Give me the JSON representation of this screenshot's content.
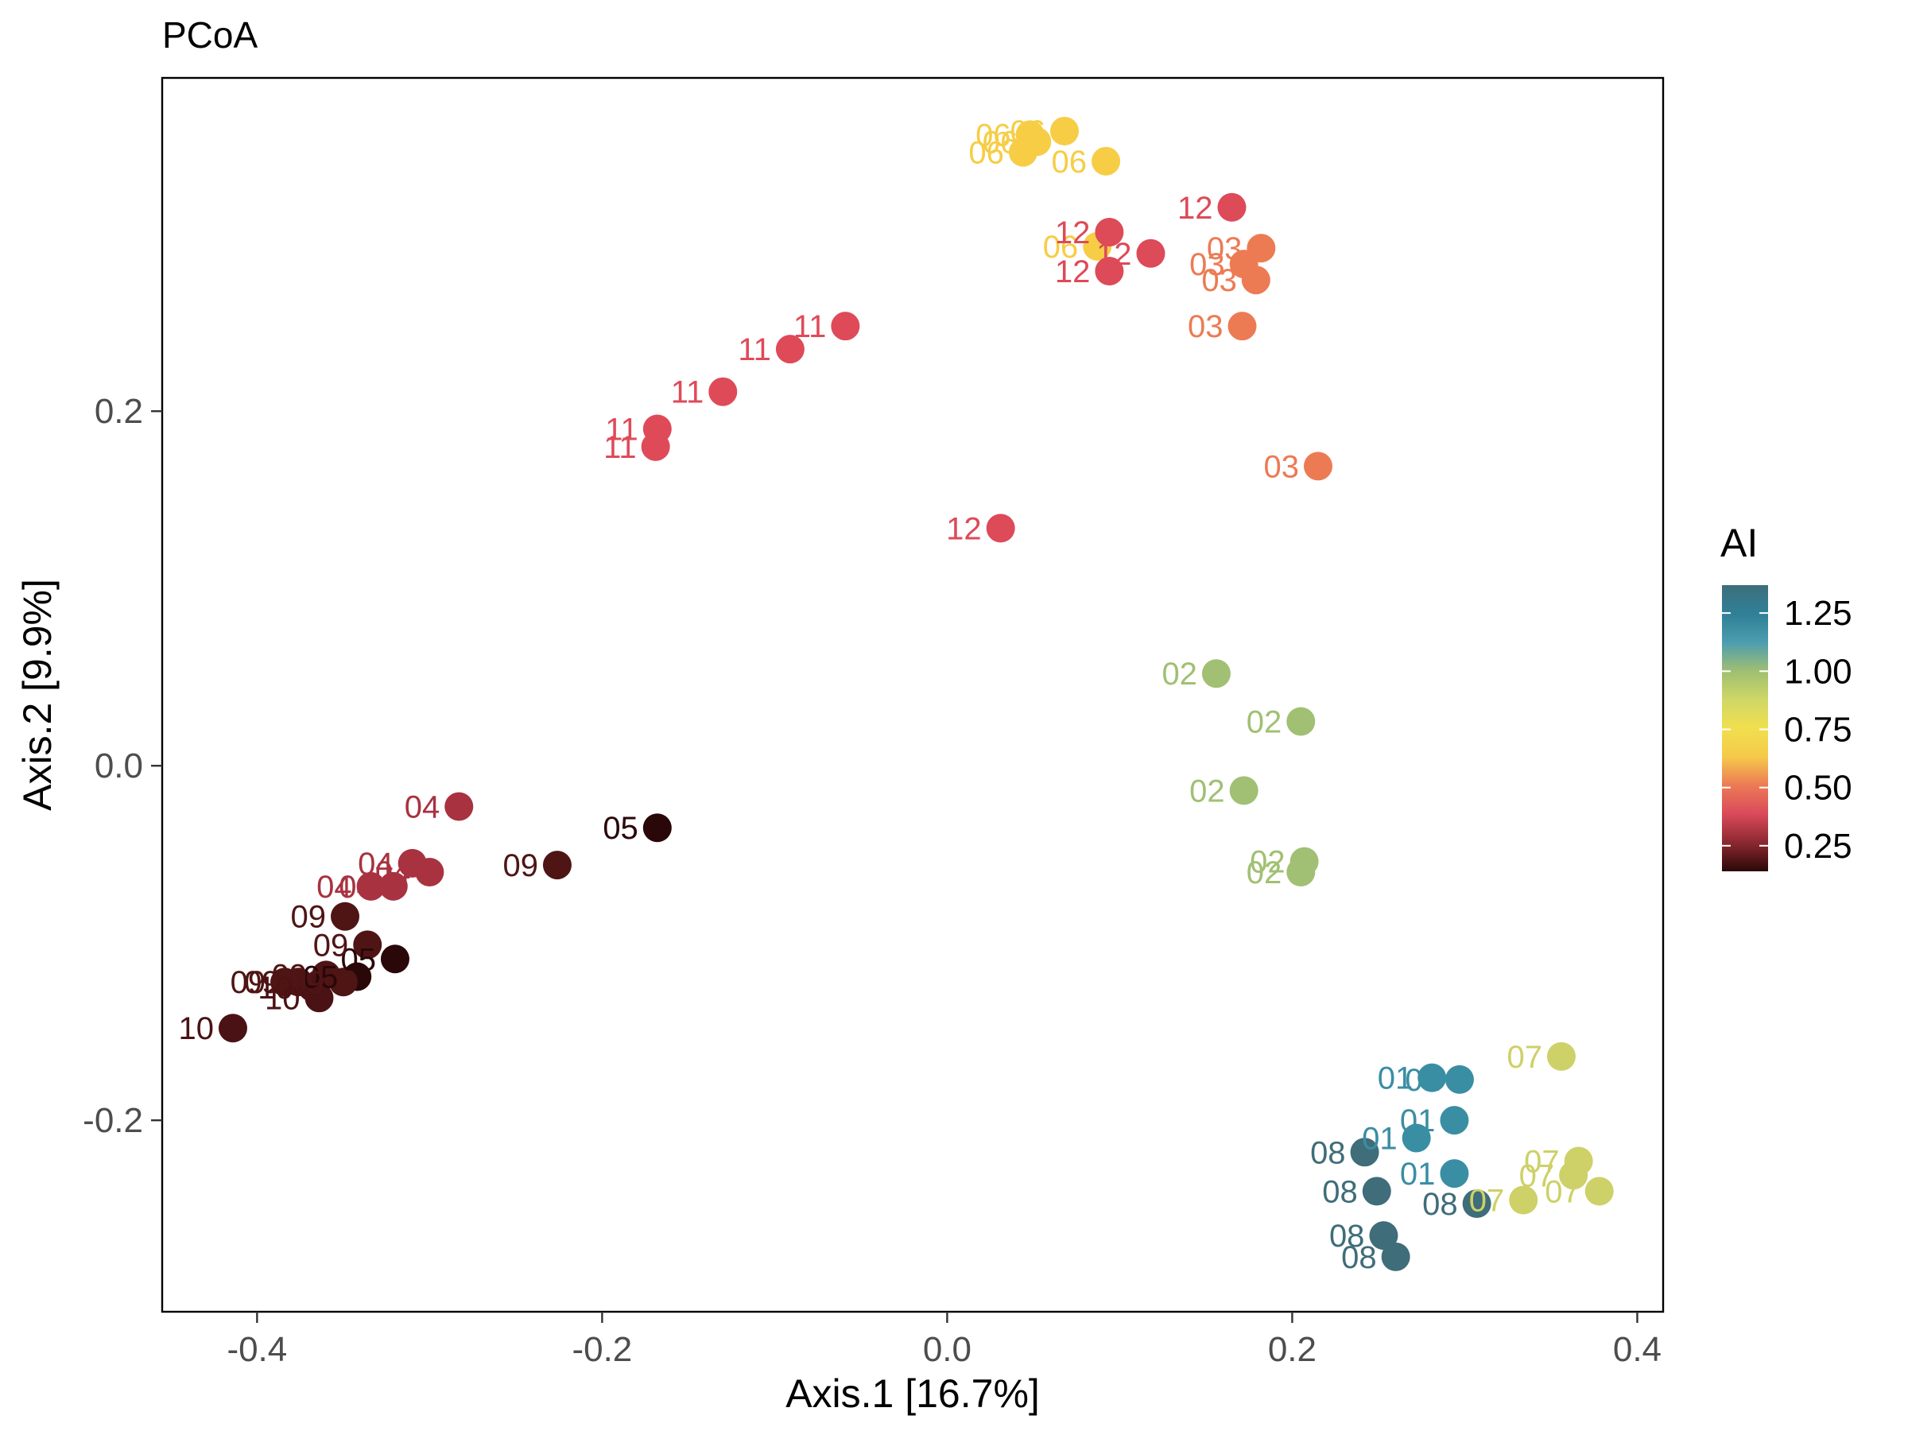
{
  "chart_data": {
    "type": "scatter",
    "title": "PCoA",
    "xlabel": "Axis.1   [16.7%]",
    "ylabel": "Axis.2   [9.9%]",
    "xlim": [
      -0.455,
      0.415
    ],
    "ylim": [
      -0.308,
      0.388
    ],
    "xticks": [
      -0.4,
      -0.2,
      0.0,
      0.2,
      0.4
    ],
    "xtick_labels": [
      "-0.4",
      "-0.2",
      "0.0",
      "0.2",
      "0.4"
    ],
    "yticks": [
      -0.2,
      0.0,
      0.2
    ],
    "ytick_labels": [
      "-0.2",
      "0.0",
      "0.2"
    ],
    "grid": false,
    "legend": {
      "title": "AI",
      "position": "right",
      "type": "colorbar",
      "range": [
        0.14,
        1.37
      ],
      "ticks": [
        0.25,
        0.5,
        0.75,
        1.0,
        1.25
      ],
      "tick_labels": [
        "0.25",
        "0.50",
        "0.75",
        "1.00",
        "1.25"
      ],
      "palette": [
        "#2b0808",
        "#8b2830",
        "#d94a5a",
        "#ec7a55",
        "#f5c94a",
        "#f1df4e",
        "#cfd766",
        "#9fbf72",
        "#4d9db0",
        "#2f8097",
        "#3e6e7c"
      ]
    },
    "points": [
      {
        "label": "06",
        "x": 0.048,
        "y": 0.356,
        "ai": 0.8,
        "color": "#f6cd45"
      },
      {
        "label": "06",
        "x": 0.052,
        "y": 0.352,
        "ai": 0.8,
        "color": "#f6cd45"
      },
      {
        "label": "06",
        "x": 0.068,
        "y": 0.358,
        "ai": 0.8,
        "color": "#f6cd45"
      },
      {
        "label": "06",
        "x": 0.044,
        "y": 0.346,
        "ai": 0.8,
        "color": "#f6cd45"
      },
      {
        "label": "06",
        "x": 0.092,
        "y": 0.341,
        "ai": 0.8,
        "color": "#f6cd45"
      },
      {
        "label": "06",
        "x": 0.087,
        "y": 0.293,
        "ai": 0.8,
        "color": "#f6cd45"
      },
      {
        "label": "12",
        "x": 0.165,
        "y": 0.315,
        "ai": 0.4,
        "color": "#dd4a58"
      },
      {
        "label": "12",
        "x": 0.094,
        "y": 0.301,
        "ai": 0.4,
        "color": "#dd4a58"
      },
      {
        "label": "12",
        "x": 0.118,
        "y": 0.289,
        "ai": 0.4,
        "color": "#dd4a58"
      },
      {
        "label": "12",
        "x": 0.094,
        "y": 0.279,
        "ai": 0.4,
        "color": "#dd4a58"
      },
      {
        "label": "12",
        "x": 0.031,
        "y": 0.134,
        "ai": 0.4,
        "color": "#dd4a58"
      },
      {
        "label": "03",
        "x": 0.182,
        "y": 0.292,
        "ai": 0.55,
        "color": "#ec7b54"
      },
      {
        "label": "03",
        "x": 0.172,
        "y": 0.283,
        "ai": 0.55,
        "color": "#ec7b54"
      },
      {
        "label": "03",
        "x": 0.179,
        "y": 0.274,
        "ai": 0.55,
        "color": "#ec7b54"
      },
      {
        "label": "03",
        "x": 0.171,
        "y": 0.248,
        "ai": 0.55,
        "color": "#ec7b54"
      },
      {
        "label": "03",
        "x": 0.215,
        "y": 0.169,
        "ai": 0.55,
        "color": "#ec7b54"
      },
      {
        "label": "11",
        "x": -0.059,
        "y": 0.248,
        "ai": 0.38,
        "color": "#df4a59"
      },
      {
        "label": "11",
        "x": -0.091,
        "y": 0.235,
        "ai": 0.38,
        "color": "#df4a59"
      },
      {
        "label": "11",
        "x": -0.13,
        "y": 0.211,
        "ai": 0.38,
        "color": "#df4a59"
      },
      {
        "label": "11",
        "x": -0.168,
        "y": 0.19,
        "ai": 0.38,
        "color": "#df4a59"
      },
      {
        "label": "11",
        "x": -0.169,
        "y": 0.18,
        "ai": 0.38,
        "color": "#df4a59"
      },
      {
        "label": "02",
        "x": 0.156,
        "y": 0.052,
        "ai": 1.05,
        "color": "#a1c073"
      },
      {
        "label": "02",
        "x": 0.205,
        "y": 0.025,
        "ai": 1.05,
        "color": "#a1c073"
      },
      {
        "label": "02",
        "x": 0.172,
        "y": -0.014,
        "ai": 1.05,
        "color": "#a1c073"
      },
      {
        "label": "02",
        "x": 0.207,
        "y": -0.054,
        "ai": 1.05,
        "color": "#a1c073"
      },
      {
        "label": "02",
        "x": 0.205,
        "y": -0.06,
        "ai": 1.05,
        "color": "#a1c073"
      },
      {
        "label": "04",
        "x": -0.283,
        "y": -0.023,
        "ai": 0.25,
        "color": "#a83240"
      },
      {
        "label": "04",
        "x": -0.31,
        "y": -0.055,
        "ai": 0.25,
        "color": "#a83240"
      },
      {
        "label": "04",
        "x": -0.3,
        "y": -0.06,
        "ai": 0.25,
        "color": "#a83240"
      },
      {
        "label": "04",
        "x": -0.334,
        "y": -0.068,
        "ai": 0.25,
        "color": "#a83240"
      },
      {
        "label": "04",
        "x": -0.321,
        "y": -0.068,
        "ai": 0.25,
        "color": "#a83240"
      },
      {
        "label": "05",
        "x": -0.168,
        "y": -0.035,
        "ai": 0.14,
        "color": "#2a0708"
      },
      {
        "label": "05",
        "x": -0.32,
        "y": -0.109,
        "ai": 0.14,
        "color": "#2a0708"
      },
      {
        "label": "05",
        "x": -0.342,
        "y": -0.119,
        "ai": 0.14,
        "color": "#2a0708"
      },
      {
        "label": "09",
        "x": -0.226,
        "y": -0.056,
        "ai": 0.18,
        "color": "#4f1515"
      },
      {
        "label": "09",
        "x": -0.349,
        "y": -0.085,
        "ai": 0.18,
        "color": "#4f1515"
      },
      {
        "label": "09",
        "x": -0.336,
        "y": -0.101,
        "ai": 0.18,
        "color": "#4f1515"
      },
      {
        "label": "09",
        "x": -0.384,
        "y": -0.122,
        "ai": 0.18,
        "color": "#4f1515"
      },
      {
        "label": "09",
        "x": -0.36,
        "y": -0.118,
        "ai": 0.18,
        "color": "#4f1515"
      },
      {
        "label": "09",
        "x": -0.376,
        "y": -0.122,
        "ai": 0.18,
        "color": "#4f1515"
      },
      {
        "label": "09",
        "x": -0.35,
        "y": -0.122,
        "ai": 0.18,
        "color": "#4f1515"
      },
      {
        "label": "10",
        "x": -0.414,
        "y": -0.148,
        "ai": 0.16,
        "color": "#4a1214"
      },
      {
        "label": "10",
        "x": -0.364,
        "y": -0.131,
        "ai": 0.16,
        "color": "#4a1214"
      },
      {
        "label": "10",
        "x": -0.368,
        "y": -0.125,
        "ai": 0.16,
        "color": "#4a1214"
      },
      {
        "label": "07",
        "x": 0.356,
        "y": -0.164,
        "ai": 0.95,
        "color": "#cdd168"
      },
      {
        "label": "07",
        "x": 0.366,
        "y": -0.223,
        "ai": 0.95,
        "color": "#cdd168"
      },
      {
        "label": "07",
        "x": 0.363,
        "y": -0.231,
        "ai": 0.95,
        "color": "#cdd168"
      },
      {
        "label": "07",
        "x": 0.378,
        "y": -0.24,
        "ai": 0.95,
        "color": "#cdd168"
      },
      {
        "label": "07",
        "x": 0.334,
        "y": -0.245,
        "ai": 0.95,
        "color": "#cdd168"
      },
      {
        "label": "01",
        "x": 0.281,
        "y": -0.176,
        "ai": 1.25,
        "color": "#3a8ea3"
      },
      {
        "label": "01",
        "x": 0.297,
        "y": -0.177,
        "ai": 1.25,
        "color": "#3a8ea3"
      },
      {
        "label": "01",
        "x": 0.294,
        "y": -0.2,
        "ai": 1.25,
        "color": "#3a8ea3"
      },
      {
        "label": "01",
        "x": 0.272,
        "y": -0.21,
        "ai": 1.25,
        "color": "#3a8ea3"
      },
      {
        "label": "01",
        "x": 0.294,
        "y": -0.23,
        "ai": 1.25,
        "color": "#3a8ea3"
      },
      {
        "label": "08",
        "x": 0.242,
        "y": -0.218,
        "ai": 1.32,
        "color": "#3f6d79"
      },
      {
        "label": "08",
        "x": 0.249,
        "y": -0.24,
        "ai": 1.32,
        "color": "#3f6d79"
      },
      {
        "label": "08",
        "x": 0.307,
        "y": -0.247,
        "ai": 1.32,
        "color": "#3f6d79"
      },
      {
        "label": "08",
        "x": 0.253,
        "y": -0.265,
        "ai": 1.32,
        "color": "#3f6d79"
      },
      {
        "label": "08",
        "x": 0.26,
        "y": -0.277,
        "ai": 1.32,
        "color": "#3f6d79"
      }
    ]
  }
}
